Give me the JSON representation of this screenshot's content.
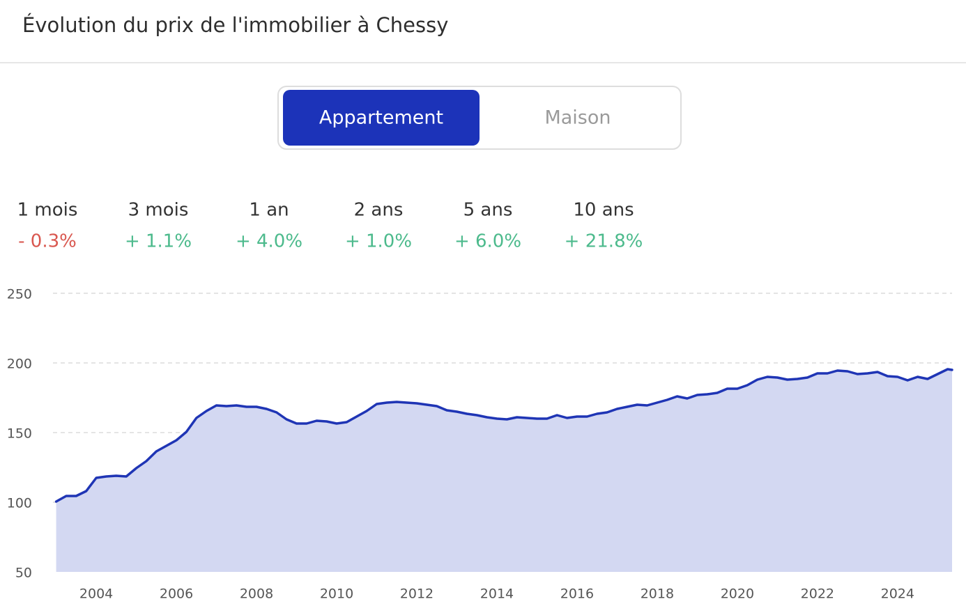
{
  "header": {
    "title": "Évolution du prix de l'immobilier à Chessy"
  },
  "toggle": {
    "options": [
      "Appartement",
      "Maison"
    ],
    "active": 0
  },
  "stats": [
    {
      "label": "1 mois",
      "value": "- 0.3%",
      "color": "#d9574f"
    },
    {
      "label": "3 mois",
      "value": "+ 1.1%",
      "color": "#4cba8c"
    },
    {
      "label": "1 an",
      "value": "+ 4.0%",
      "color": "#4cba8c"
    },
    {
      "label": "2 ans",
      "value": "+ 1.0%",
      "color": "#4cba8c"
    },
    {
      "label": "5 ans",
      "value": "+ 6.0%",
      "color": "#4cba8c"
    },
    {
      "label": "10 ans",
      "value": "+ 21.8%",
      "color": "#4cba8c"
    }
  ],
  "chart_data": {
    "type": "area",
    "x": [
      2003,
      2003.25,
      2003.5,
      2003.75,
      2004,
      2004.25,
      2004.5,
      2004.75,
      2005,
      2005.25,
      2005.5,
      2005.75,
      2006,
      2006.25,
      2006.5,
      2006.75,
      2007,
      2007.25,
      2007.5,
      2007.75,
      2008,
      2008.25,
      2008.5,
      2008.75,
      2009,
      2009.25,
      2009.5,
      2009.75,
      2010,
      2010.25,
      2010.5,
      2010.75,
      2011,
      2011.25,
      2011.5,
      2011.75,
      2012,
      2012.25,
      2012.5,
      2012.75,
      2013,
      2013.25,
      2013.5,
      2013.75,
      2014,
      2014.25,
      2014.5,
      2014.75,
      2015,
      2015.25,
      2015.5,
      2015.75,
      2016,
      2016.25,
      2016.5,
      2016.75,
      2017,
      2017.25,
      2017.5,
      2017.75,
      2018,
      2018.25,
      2018.5,
      2018.75,
      2019,
      2019.25,
      2019.5,
      2019.75,
      2020,
      2020.25,
      2020.5,
      2020.75,
      2021,
      2021.25,
      2021.5,
      2021.75,
      2022,
      2022.25,
      2022.5,
      2022.75,
      2023,
      2023.25,
      2023.5,
      2023.75,
      2024,
      2024.25,
      2024.5,
      2024.75,
      2025,
      2025.25,
      2025.36
    ],
    "series": [
      {
        "color": "#1f35b5",
        "fill": "#d3d8f2",
        "values": [
          100.5,
          104.5,
          104.5,
          108,
          117.5,
          118.5,
          119,
          118.5,
          124.5,
          129.5,
          136.5,
          140.5,
          144.5,
          150.5,
          160.5,
          165.5,
          169.5,
          169,
          169.5,
          168.5,
          168.5,
          167,
          164.5,
          159.5,
          156.5,
          156.5,
          158.5,
          158,
          156.5,
          157.5,
          161.5,
          165.5,
          170.5,
          171.5,
          172,
          171.5,
          171,
          170,
          169,
          166,
          165,
          163.5,
          162.5,
          161,
          160,
          159.5,
          161,
          160.5,
          160,
          160,
          162.5,
          160.5,
          161.5,
          161.5,
          163.5,
          164.5,
          167,
          168.5,
          170,
          169.5,
          171.5,
          173.5,
          176,
          174.5,
          177,
          177.5,
          178.5,
          181.5,
          181.5,
          184,
          188,
          190,
          189.5,
          188,
          188.5,
          189.5,
          192.5,
          192.5,
          194.5,
          194,
          192,
          192.5,
          193.5,
          190.5,
          190,
          187.5,
          190,
          188.5,
          192,
          195.5,
          195
        ]
      }
    ],
    "xlim": [
      2002.92,
      2025.36
    ],
    "ylim": [
      50,
      250
    ],
    "xticks": [
      2004,
      2006,
      2008,
      2010,
      2012,
      2014,
      2016,
      2018,
      2020,
      2022,
      2024
    ],
    "yticks": [
      50,
      100,
      150,
      200,
      250
    ],
    "grid": true
  }
}
